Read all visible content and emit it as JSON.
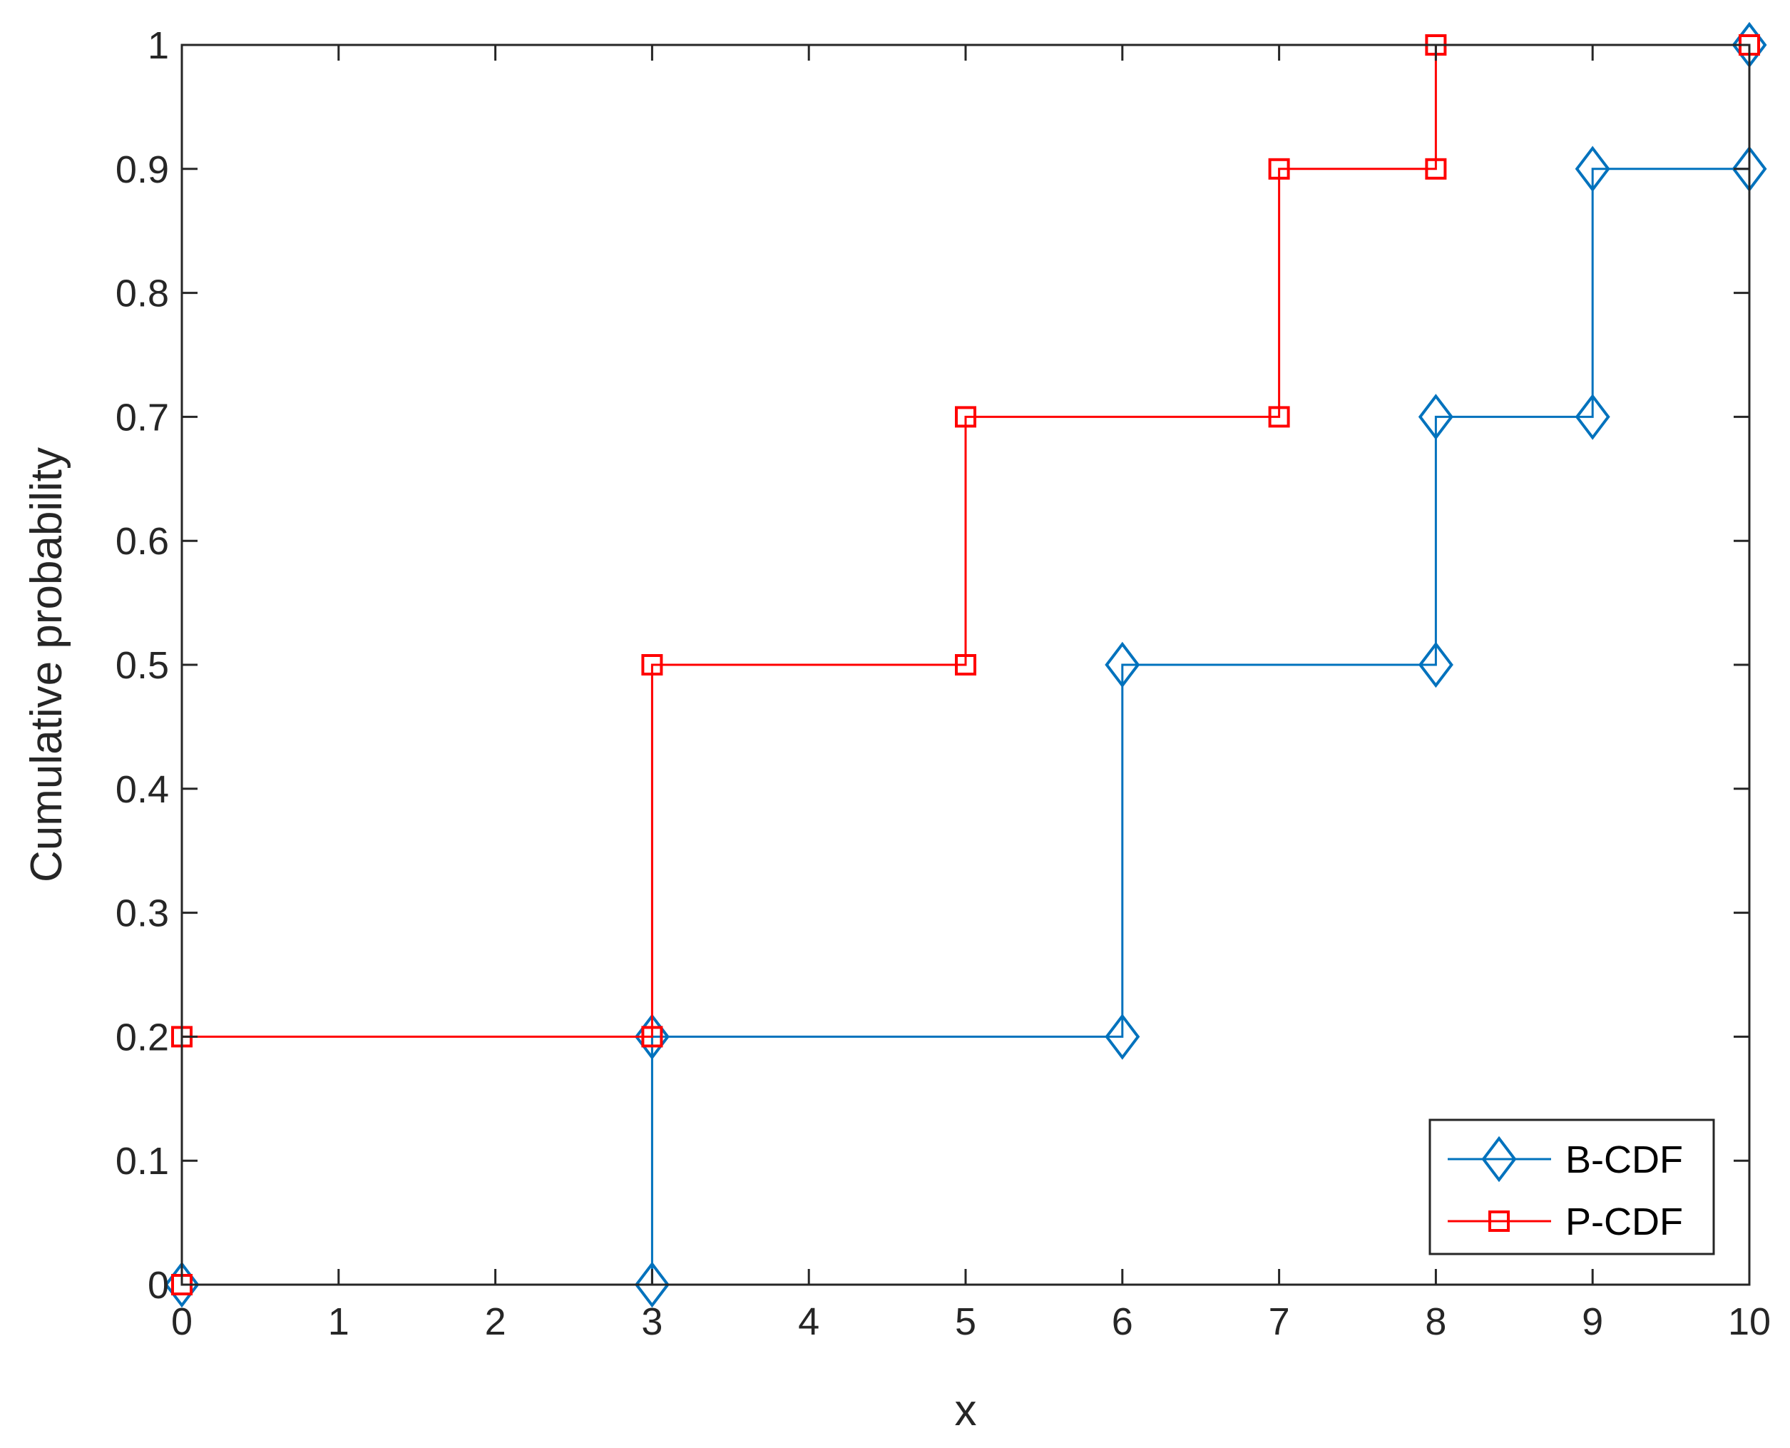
{
  "chart_data": {
    "type": "line",
    "title": "",
    "xlabel": "x",
    "ylabel": "Cumulative probability",
    "xlim": [
      0,
      10
    ],
    "ylim": [
      0,
      1
    ],
    "grid": false,
    "legend_position": "bottom-right",
    "x_ticks": [
      0,
      1,
      2,
      3,
      4,
      5,
      6,
      7,
      8,
      9,
      10
    ],
    "x_tick_labels": [
      "0",
      "1",
      "2",
      "3",
      "4",
      "5",
      "6",
      "7",
      "8",
      "9",
      "10"
    ],
    "y_ticks": [
      0,
      0.1,
      0.2,
      0.3,
      0.4,
      0.5,
      0.6,
      0.7,
      0.8,
      0.9,
      1
    ],
    "y_tick_labels": [
      "0",
      "0.1",
      "0.2",
      "0.3",
      "0.4",
      "0.5",
      "0.6",
      "0.7",
      "0.8",
      "0.9",
      "1"
    ],
    "series": [
      {
        "name": "B-CDF",
        "color": "#0072BD",
        "marker": "diamond",
        "x": [
          0,
          3,
          3,
          6,
          6,
          8,
          8,
          9,
          9,
          10,
          10
        ],
        "y": [
          0,
          0,
          0.2,
          0.2,
          0.5,
          0.5,
          0.7,
          0.7,
          0.9,
          0.9,
          1
        ]
      },
      {
        "name": "P-CDF",
        "color": "#FF0000",
        "marker": "square",
        "x": [
          0,
          0,
          3,
          3,
          5,
          5,
          7,
          7,
          8,
          8,
          10
        ],
        "y": [
          0,
          0.2,
          0.2,
          0.5,
          0.5,
          0.7,
          0.7,
          0.9,
          0.9,
          1,
          1
        ]
      }
    ]
  }
}
